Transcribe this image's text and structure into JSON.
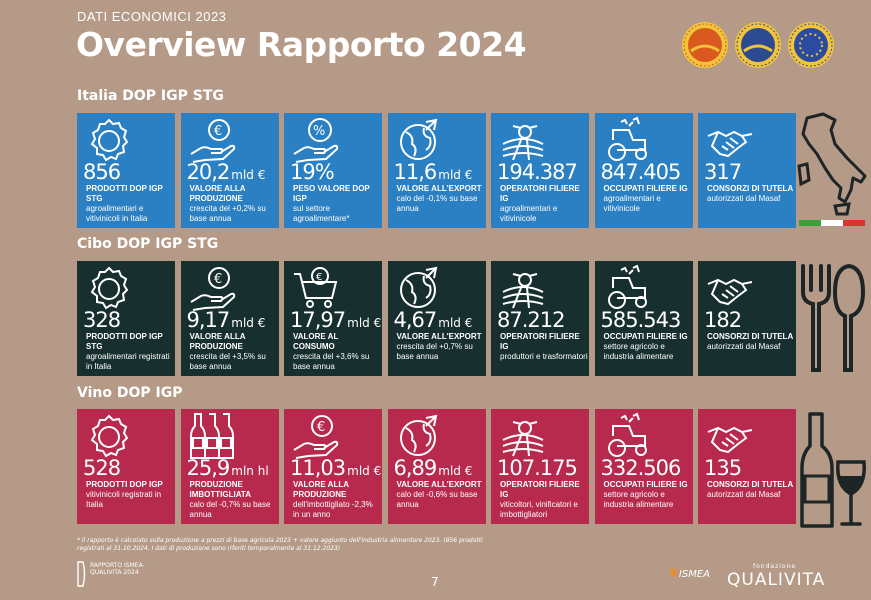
{
  "header": {
    "kicker": "DATI ECONOMICI 2023",
    "title": "Overview Rapporto 2024"
  },
  "seals": [
    {
      "icon": "dop-seal-icon",
      "color": "#d9591f"
    },
    {
      "icon": "igp-seal-icon",
      "color": "#2c4a8f"
    },
    {
      "icon": "stg-seal-icon",
      "color": "#2a4ba0"
    }
  ],
  "sections": [
    {
      "title": "Italia DOP IGP STG",
      "color": "#2b7fc3",
      "tiles": [
        {
          "icon": "seal-icon",
          "value": "856",
          "unit": "",
          "label": "PRODOTTI DOP IGP STG",
          "sub": "agroalimentari e vitivinicoli in Italia"
        },
        {
          "icon": "euro-hand-icon",
          "value": "20,2",
          "unit": "mld €",
          "label": "VALORE ALLA PRODUZIONE",
          "sub": "crescita del +0,2% su base annua"
        },
        {
          "icon": "percent-hand-icon",
          "value": "19%",
          "unit": "",
          "label": "PESO VALORE DOP IGP",
          "sub": "sul settore agroalimentare*"
        },
        {
          "icon": "globe-export-icon",
          "value": "11,6",
          "unit": "mld €",
          "label": "VALORE ALL'EXPORT",
          "sub": "calo del -0,1% su base annua"
        },
        {
          "icon": "fields-icon",
          "value": "194.387",
          "unit": "",
          "label": "OPERATORI FILIERE IG",
          "sub": "agroalimentari e vitivinicole"
        },
        {
          "icon": "tractor-icon",
          "value": "847.405",
          "unit": "",
          "label": "OCCUPATI FILIERE IG",
          "sub": "agroalimentari e vitivinicole"
        },
        {
          "icon": "handshake-icon",
          "value": "317",
          "unit": "",
          "label": "CONSORZI DI TUTELA",
          "sub": "autorizzati dal Masaf"
        }
      ]
    },
    {
      "title": "Cibo DOP IGP STG",
      "color": "#17302f",
      "tiles": [
        {
          "icon": "seal-icon",
          "value": "328",
          "unit": "",
          "label": "PRODOTTI DOP IGP STG",
          "sub": "agroalimentari registrati in Italia"
        },
        {
          "icon": "euro-hand-icon",
          "value": "9,17",
          "unit": "mld €",
          "label": "VALORE ALLA PRODUZIONE",
          "sub": "crescita del +3,5% su base annua"
        },
        {
          "icon": "cart-icon",
          "value": "17,97",
          "unit": "mld €",
          "label": "VALORE AL CONSUMO",
          "sub": "crescita del +3,6% su base annua"
        },
        {
          "icon": "globe-export-icon",
          "value": "4,67",
          "unit": "mld €",
          "label": "VALORE ALL'EXPORT",
          "sub": "crescita del +0,7% su base annua"
        },
        {
          "icon": "fields-icon",
          "value": "87.212",
          "unit": "",
          "label": "OPERATORI FILIERE IG",
          "sub": "produttori e trasformatori"
        },
        {
          "icon": "tractor-icon",
          "value": "585.543",
          "unit": "",
          "label": "OCCUPATI FILIERE IG",
          "sub": "settore agricolo e industria alimentare"
        },
        {
          "icon": "handshake-icon",
          "value": "182",
          "unit": "",
          "label": "CONSORZI DI TUTELA",
          "sub": "autorizzati dal Masaf"
        }
      ]
    },
    {
      "title": "Vino DOP IGP",
      "color": "#b72a4e",
      "tiles": [
        {
          "icon": "seal-icon",
          "value": "528",
          "unit": "",
          "label": "PRODOTTI DOP IGP",
          "sub": "vitivinicoli registrati in Italia"
        },
        {
          "icon": "bottles-icon",
          "value": "25,9",
          "unit": "mln hl",
          "label": "PRODUZIONE IMBOTTIGLIATA",
          "sub": "calo del -0,7% su base annua"
        },
        {
          "icon": "euro-hand-icon",
          "value": "11,03",
          "unit": "mld €",
          "label": "VALORE ALLA PRODUZIONE",
          "sub": "dell'imbottigliato -2,3% in un anno"
        },
        {
          "icon": "globe-export-icon",
          "value": "6,89",
          "unit": "mld €",
          "label": "VALORE ALL'EXPORT",
          "sub": "calo del -0,6% su base annua"
        },
        {
          "icon": "fields-icon",
          "value": "107.175",
          "unit": "",
          "label": "OPERATORI FILIERE IG",
          "sub": "viticoltori, vinificatori e imbottigliatori"
        },
        {
          "icon": "tractor-icon",
          "value": "332.506",
          "unit": "",
          "label": "OCCUPATI FILIERE IG",
          "sub": "settore agricolo e industria alimentare"
        },
        {
          "icon": "handshake-icon",
          "value": "135",
          "unit": "",
          "label": "CONSORZI DI TUTELA",
          "sub": "autorizzati dal Masaf"
        }
      ]
    }
  ],
  "footnote": "* Il rapporto è calcolato sulla produzione a prezzi di base agricola 2023 + valore aggiunto dell'industria alimentare 2023. (856 prodotti registrati al 31.10.2024. I dati di produzione sono riferiti temporalmente al 31.12.2023)",
  "footer": {
    "page_number": "7",
    "report_logo": "RAPPORTO ISMEA-QUALIVITA 2024",
    "ismea_logo": "ISMEA",
    "qualivita_logo": "QUALIVITA",
    "qualivita_small": "fondazione"
  }
}
